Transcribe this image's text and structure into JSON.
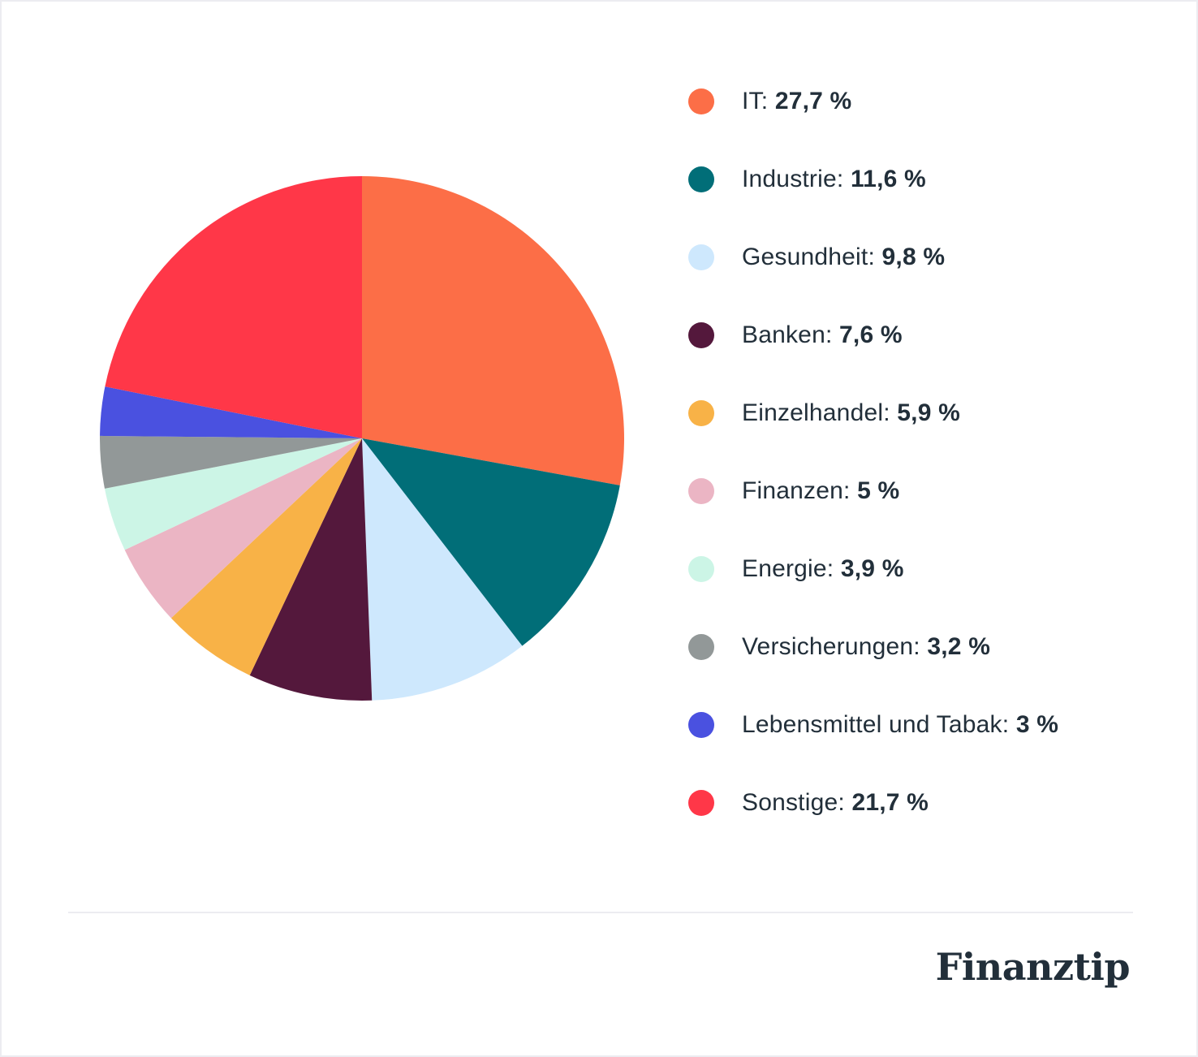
{
  "chart_data": {
    "type": "pie",
    "title": "",
    "start_angle": "12 o'clock, clockwise",
    "legend_position": "right",
    "categories": [
      "IT",
      "Industrie",
      "Gesundheit",
      "Banken",
      "Einzelhandel",
      "Finanzen",
      "Energie",
      "Versicherungen",
      "Lebensmittel und Tabak",
      "Sonstige"
    ],
    "values": [
      27.7,
      11.6,
      9.8,
      7.6,
      5.9,
      5.0,
      3.9,
      3.2,
      3.0,
      21.7
    ],
    "unit": "%",
    "colors": [
      "#fc6e47",
      "#016e78",
      "#cee8fd",
      "#54183c",
      "#f8b247",
      "#ebb5c4",
      "#ccf5e6",
      "#929898",
      "#4a51e0",
      "#ff3748"
    ]
  },
  "legend": {
    "items": [
      {
        "label": "IT:",
        "value": "27,7 %",
        "color": "#fc6e47"
      },
      {
        "label": "Industrie:",
        "value": "11,6 %",
        "color": "#016e78"
      },
      {
        "label": "Gesundheit:",
        "value": "9,8 %",
        "color": "#cee8fd"
      },
      {
        "label": "Banken:",
        "value": "7,6 %",
        "color": "#54183c"
      },
      {
        "label": "Einzelhandel:",
        "value": "5,9 %",
        "color": "#f8b247"
      },
      {
        "label": "Finanzen:",
        "value": "5 %",
        "color": "#ebb5c4"
      },
      {
        "label": "Energie:",
        "value": "3,9 %",
        "color": "#ccf5e6"
      },
      {
        "label": "Versicherungen:",
        "value": "3,2 %",
        "color": "#929898"
      },
      {
        "label": "Lebensmittel und Tabak:",
        "value": "3 %",
        "color": "#4a51e0"
      },
      {
        "label": "Sonstige:",
        "value": "21,7 %",
        "color": "#ff3748"
      }
    ]
  },
  "footer": {
    "brand": "Finanztip"
  }
}
